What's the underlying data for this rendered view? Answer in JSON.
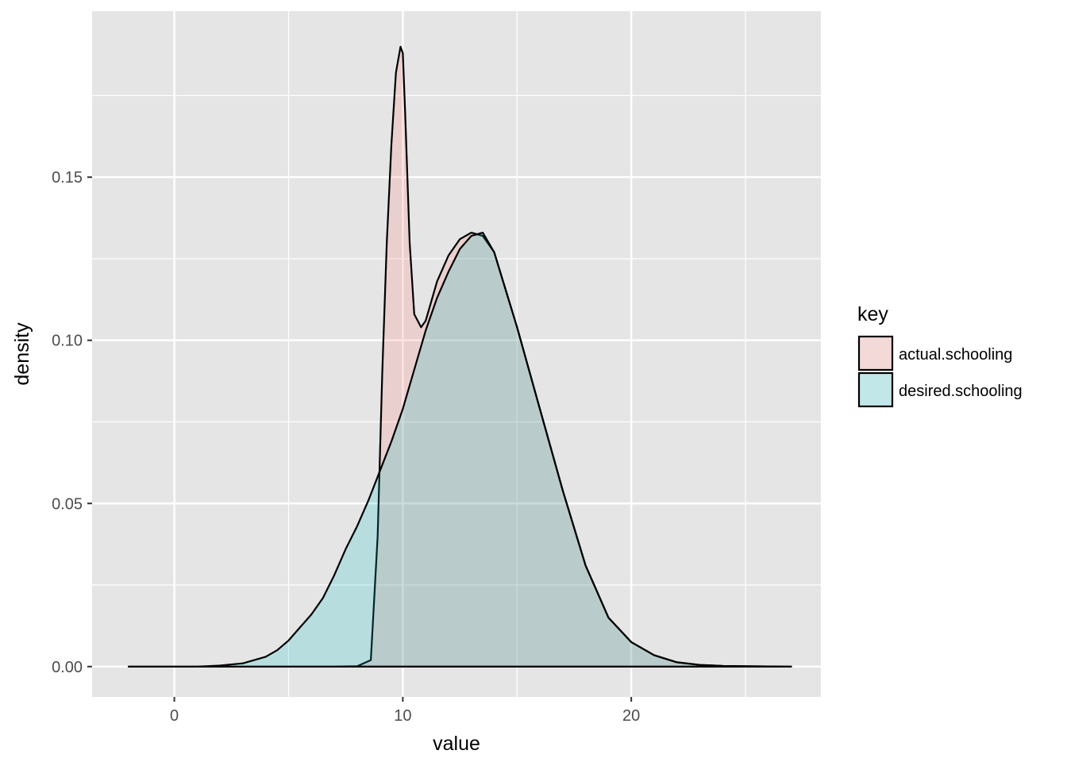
{
  "chart_data": {
    "type": "area",
    "subtype": "density",
    "xlabel": "value",
    "ylabel": "density",
    "xlim": [
      -3.6,
      28.3
    ],
    "ylim": [
      -0.0093,
      0.2009
    ],
    "x_ticks": [
      0,
      10,
      20
    ],
    "x_tick_labels": [
      "0",
      "10",
      "20"
    ],
    "y_ticks": [
      0.0,
      0.05,
      0.1,
      0.15
    ],
    "y_tick_labels": [
      "0.00",
      "0.05",
      "0.10",
      "0.15"
    ],
    "grid": true,
    "legend": {
      "title": "key",
      "position": "right",
      "entries": [
        "actual.schooling",
        "desired.schooling"
      ]
    },
    "colors": {
      "panel_background": "#e5e5e5",
      "grid": "#ffffff",
      "outline": "#000000",
      "actual.schooling": "#f8766d",
      "desired.schooling": "#00bfc4"
    },
    "fill_alpha": 0.2,
    "series": [
      {
        "name": "actual.schooling",
        "x": [
          -2,
          7,
          8,
          8.6,
          8.9,
          9.1,
          9.3,
          9.5,
          9.7,
          9.9,
          10,
          10.1,
          10.3,
          10.5,
          10.8,
          11,
          11.5,
          12,
          12.5,
          13,
          13.5,
          14,
          15,
          16,
          17,
          18,
          19,
          20,
          21,
          22,
          23,
          24,
          25,
          27
        ],
        "y": [
          0,
          0,
          0.0001,
          0.002,
          0.04,
          0.09,
          0.13,
          0.16,
          0.182,
          0.19,
          0.188,
          0.17,
          0.13,
          0.108,
          0.104,
          0.106,
          0.118,
          0.126,
          0.131,
          0.133,
          0.132,
          0.127,
          0.104,
          0.079,
          0.054,
          0.031,
          0.015,
          0.0075,
          0.0035,
          0.0013,
          0.0005,
          0.0002,
          0.0001,
          0
        ]
      },
      {
        "name": "desired.schooling",
        "x": [
          -2,
          1,
          2,
          3,
          4,
          4.5,
          5,
          5.5,
          6,
          6.5,
          7,
          7.5,
          8,
          8.5,
          9,
          9.5,
          10,
          10.5,
          11,
          11.5,
          12,
          12.5,
          13,
          13.5,
          14,
          15,
          16,
          17,
          18,
          19,
          20,
          21,
          22,
          23,
          24,
          25,
          27
        ],
        "y": [
          0,
          0,
          0.0003,
          0.001,
          0.003,
          0.005,
          0.008,
          0.012,
          0.016,
          0.021,
          0.028,
          0.036,
          0.043,
          0.051,
          0.06,
          0.069,
          0.079,
          0.091,
          0.103,
          0.113,
          0.121,
          0.128,
          0.132,
          0.133,
          0.127,
          0.104,
          0.079,
          0.054,
          0.031,
          0.015,
          0.0075,
          0.0035,
          0.0013,
          0.0005,
          0.0002,
          0.0001,
          0
        ]
      }
    ]
  }
}
